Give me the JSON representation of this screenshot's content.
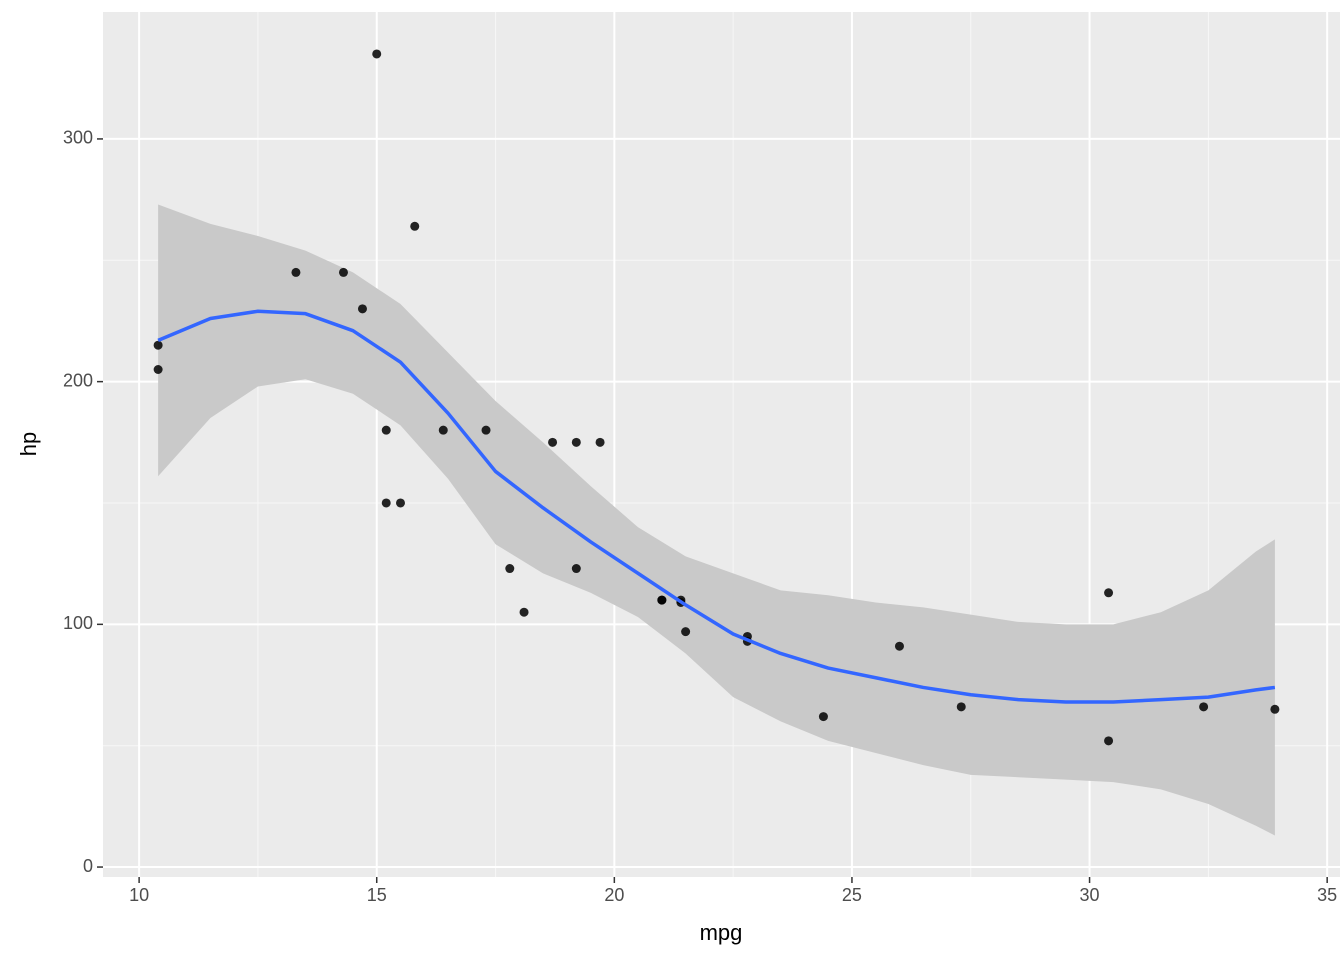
{
  "chart_data": {
    "type": "scatter",
    "x_label": "mpg",
    "y_label": "hp",
    "x": [
      21,
      21,
      22.8,
      21.4,
      18.7,
      18.1,
      14.3,
      24.4,
      22.8,
      19.2,
      17.8,
      16.4,
      17.3,
      15.2,
      10.4,
      10.4,
      14.7,
      32.4,
      30.4,
      33.9,
      21.5,
      15.5,
      15.2,
      13.3,
      19.2,
      27.3,
      26,
      30.4,
      15.8,
      19.7,
      15,
      21.4
    ],
    "values": [
      110,
      110,
      93,
      110,
      175,
      105,
      245,
      62,
      95,
      123,
      123,
      180,
      180,
      180,
      205,
      215,
      230,
      66,
      52,
      65,
      97,
      150,
      150,
      245,
      175,
      66,
      91,
      113,
      264,
      175,
      335,
      109
    ],
    "color": "#000000",
    "smooth": {
      "color": "#3366ff",
      "fill": "#c9c9c9",
      "x": [
        10.4,
        11.5,
        12.5,
        13.5,
        14.5,
        15.5,
        16.5,
        17.5,
        18.5,
        19.5,
        20.5,
        21.5,
        22.5,
        23.5,
        24.5,
        25.5,
        26.5,
        27.5,
        28.5,
        29.5,
        30.5,
        31.5,
        32.5,
        33.5,
        33.9
      ],
      "fit": [
        217,
        226,
        229,
        228,
        221,
        208,
        187,
        163,
        148,
        134,
        121,
        108,
        96,
        88,
        82,
        78,
        74,
        71,
        69,
        68,
        68,
        69,
        70,
        73,
        74
      ],
      "lower": [
        161,
        185,
        198,
        201,
        195,
        182,
        160,
        133,
        121,
        113,
        103,
        88,
        70,
        60,
        52,
        47,
        42,
        38,
        37,
        36,
        35,
        32,
        26,
        17,
        13
      ],
      "upper": [
        273,
        265,
        260,
        254,
        245,
        232,
        212,
        192,
        175,
        157,
        140,
        128,
        121,
        114,
        112,
        109,
        107,
        104,
        101,
        100,
        100,
        105,
        114,
        130,
        135
      ]
    },
    "xlim": [
      9.24,
      35.27
    ],
    "ylim": [
      -4.1,
      352.3
    ],
    "xticks": [
      10,
      15,
      20,
      25,
      30,
      35
    ],
    "yticks": [
      0,
      100,
      200,
      300
    ],
    "xminor": [
      12.5,
      17.5,
      22.5,
      27.5,
      32.5
    ],
    "yminor": [
      50,
      150,
      250
    ],
    "grid": true,
    "panel_color": "#ebebeb"
  }
}
